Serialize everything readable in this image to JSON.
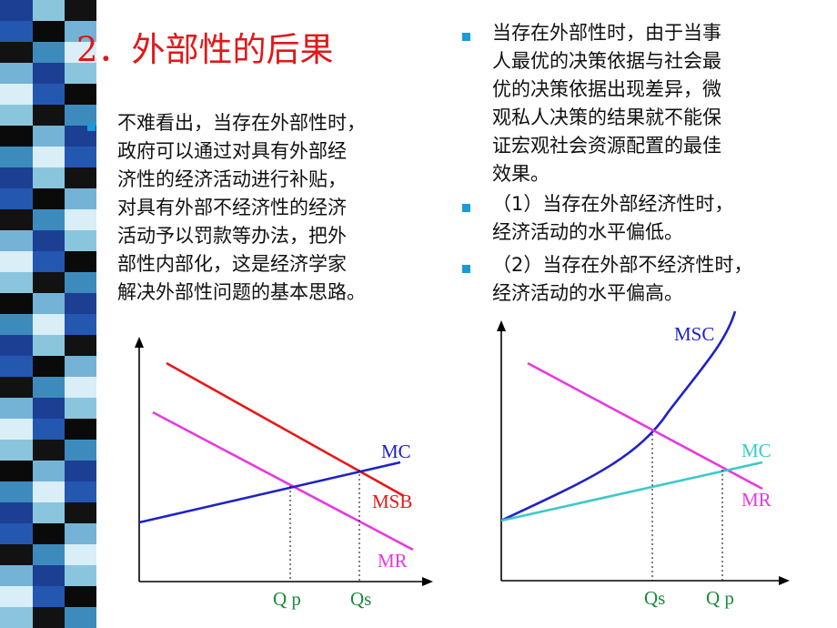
{
  "slide": {
    "title": "2．外部性的后果",
    "left_bullet": "不难看出，当存在外部性时，\n政府可以通过对具有外部经\n济性的经济活动进行补贴，\n对具有外部不经济性的经济\n活动予以罚款等办法，把外\n部性内部化，这是经济学家\n解决外部性问题的基本思路。",
    "right_bullets": [
      "当存在外部性时，由于当事\n人最优的决策依据与社会最\n优的决策依据出现差异，微\n观私人决策的结果就不能保\n证宏观社会资源配置的最佳\n效果。",
      "（1）当存在外部经济性时，\n经济活动的水平偏低。",
      "（2）当存在外部不经济性时，\n经济活动的水平偏高。"
    ]
  },
  "colors": {
    "title": "#e01818",
    "bullet": "#1a9ad6",
    "mc_left": "#1f22c8",
    "msb": "#e81818",
    "mr": "#e838e0",
    "msc": "#1f22c8",
    "mc_right": "#3cc8c8",
    "axis_label": "#1a8a3a"
  },
  "left_graph": {
    "labels": {
      "mc": "MC",
      "msb": "MSB",
      "mr": "MR",
      "qp": "Q p",
      "qs": "Qs"
    }
  },
  "right_graph": {
    "labels": {
      "msc": "MSC",
      "mc": "MC",
      "mr": "MR",
      "qs": "Qs",
      "qp": "Q p"
    }
  }
}
